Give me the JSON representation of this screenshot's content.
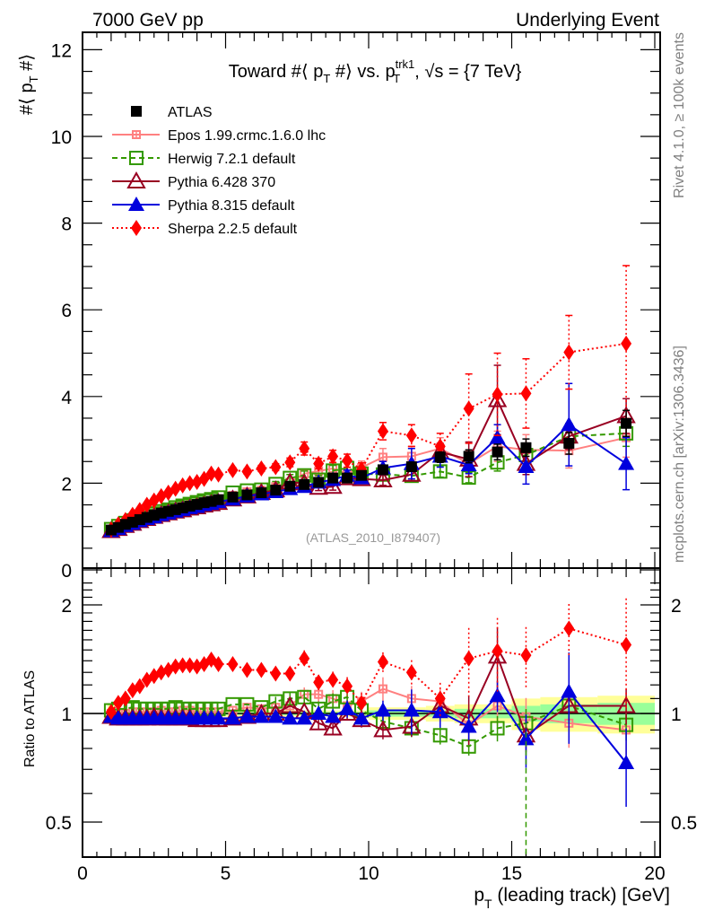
{
  "header": {
    "left": "7000 GeV pp",
    "right": "Underlying Event"
  },
  "side_labels": {
    "rivet": "Rivet 4.1.0, ≥ 100k events",
    "mcplots": "mcplots.cern.ch [arXiv:1306.3436]"
  },
  "analysis_tag": "(ATLAS_2010_I879407)",
  "chart_data": [
    {
      "type": "scatter",
      "panel": "main",
      "title": "Toward #⟨ p_T #⟩ vs. p_T^trk1, √s = {7 TeV}",
      "title_parts": {
        "main": "Toward #⟨ p",
        "sub1": "T",
        "mid": " #⟩ vs. p",
        "sup": "trk1",
        "sub2": "T",
        "tail": ", √s = {7 TeV}"
      },
      "ylabel": "#⟨ p_T #⟩",
      "ylabel_parts": {
        "pre": "#⟨ p",
        "sub": "T",
        "post": " #⟩"
      },
      "xlabel": "p_T (leading track) [GeV]",
      "xlabel_parts": {
        "pre": "p",
        "sub": "T",
        "post": " (leading track) [GeV]"
      },
      "xlim": [
        0,
        20.2
      ],
      "ylim": [
        0,
        12.4
      ],
      "yticks": [
        0,
        2,
        4,
        6,
        8,
        10,
        12
      ],
      "xticks": [
        0,
        5,
        10,
        15,
        20
      ],
      "legend_position": "top-left",
      "x": [
        1.0,
        1.25,
        1.5,
        1.75,
        2.0,
        2.25,
        2.5,
        2.75,
        3.0,
        3.25,
        3.5,
        3.75,
        4.0,
        4.25,
        4.5,
        4.75,
        5.25,
        5.75,
        6.25,
        6.75,
        7.25,
        7.75,
        8.25,
        8.75,
        9.25,
        9.75,
        10.5,
        11.5,
        12.5,
        13.5,
        14.5,
        15.5,
        17.0,
        19.0
      ],
      "series": [
        {
          "name": "ATLAS",
          "color": "#000000",
          "marker": "square-filled",
          "line": "none",
          "values": [
            0.92,
            0.98,
            1.05,
            1.1,
            1.16,
            1.21,
            1.26,
            1.31,
            1.35,
            1.39,
            1.43,
            1.47,
            1.51,
            1.55,
            1.58,
            1.62,
            1.68,
            1.73,
            1.78,
            1.84,
            1.93,
            1.97,
            2.02,
            2.12,
            2.12,
            2.18,
            2.31,
            2.38,
            2.6,
            2.62,
            2.72,
            2.82,
            2.92,
            3.38
          ],
          "errors": [
            0.01,
            0.01,
            0.01,
            0.01,
            0.01,
            0.01,
            0.01,
            0.01,
            0.01,
            0.01,
            0.01,
            0.01,
            0.02,
            0.02,
            0.02,
            0.02,
            0.02,
            0.03,
            0.03,
            0.03,
            0.04,
            0.04,
            0.05,
            0.05,
            0.06,
            0.07,
            0.08,
            0.1,
            0.12,
            0.15,
            0.18,
            0.2,
            0.25,
            0.3
          ]
        },
        {
          "name": "Epos 1.99.crmc.1.6.0 lhc",
          "color": "#ff8080",
          "marker": "open-cross-square",
          "line": "solid",
          "values": [
            0.92,
            0.98,
            1.05,
            1.11,
            1.17,
            1.22,
            1.27,
            1.33,
            1.37,
            1.41,
            1.46,
            1.5,
            1.53,
            1.57,
            1.6,
            1.64,
            1.72,
            1.8,
            1.84,
            1.92,
            2.02,
            2.22,
            2.28,
            2.34,
            2.22,
            2.36,
            2.6,
            2.62,
            2.8,
            2.45,
            2.85,
            2.77,
            2.75,
            3.05
          ],
          "errors": [
            0.02,
            0.02,
            0.02,
            0.02,
            0.02,
            0.02,
            0.02,
            0.02,
            0.02,
            0.02,
            0.03,
            0.03,
            0.03,
            0.03,
            0.03,
            0.03,
            0.04,
            0.05,
            0.05,
            0.06,
            0.08,
            0.1,
            0.11,
            0.13,
            0.14,
            0.15,
            0.2,
            0.22,
            0.25,
            0.3,
            0.35,
            0.35,
            0.4,
            0.45
          ]
        },
        {
          "name": "Herwig 7.2.1 default",
          "color": "#339900",
          "marker": "open-square",
          "line": "dashed",
          "values": [
            0.94,
            1.01,
            1.08,
            1.14,
            1.2,
            1.25,
            1.3,
            1.35,
            1.39,
            1.44,
            1.48,
            1.52,
            1.56,
            1.6,
            1.63,
            1.67,
            1.78,
            1.83,
            1.85,
            1.98,
            2.12,
            2.18,
            2.08,
            2.29,
            2.35,
            2.22,
            2.2,
            2.17,
            2.27,
            2.13,
            2.48,
            2.65,
            3.08,
            3.15
          ],
          "errors": [
            0.02,
            0.02,
            0.02,
            0.02,
            0.02,
            0.02,
            0.02,
            0.02,
            0.02,
            0.02,
            0.03,
            0.03,
            0.03,
            0.03,
            0.03,
            0.03,
            0.04,
            0.05,
            0.05,
            0.06,
            0.08,
            0.1,
            0.1,
            0.12,
            0.13,
            0.12,
            0.12,
            0.12,
            0.13,
            0.12,
            0.2,
            0.25,
            0.3,
            0.3
          ]
        },
        {
          "name": "Pythia 6.428 370",
          "color": "#990022",
          "marker": "open-triangle",
          "line": "solid",
          "values": [
            0.9,
            0.95,
            1.02,
            1.07,
            1.13,
            1.18,
            1.23,
            1.27,
            1.31,
            1.35,
            1.38,
            1.42,
            1.45,
            1.49,
            1.52,
            1.55,
            1.63,
            1.7,
            1.78,
            1.84,
            2.02,
            2.0,
            1.9,
            1.92,
            2.12,
            2.1,
            2.07,
            2.2,
            2.72,
            2.55,
            3.92,
            2.45,
            3.08,
            3.55
          ],
          "errors": [
            0.01,
            0.01,
            0.01,
            0.01,
            0.01,
            0.01,
            0.01,
            0.01,
            0.01,
            0.01,
            0.02,
            0.02,
            0.02,
            0.02,
            0.02,
            0.02,
            0.03,
            0.03,
            0.04,
            0.04,
            0.05,
            0.06,
            0.07,
            0.08,
            0.09,
            0.1,
            0.12,
            0.14,
            0.2,
            0.4,
            0.8,
            0.25,
            0.3,
            0.4
          ]
        },
        {
          "name": "Pythia 8.315 default",
          "color": "#0000dd",
          "marker": "filled-triangle",
          "line": "solid",
          "values": [
            0.9,
            0.95,
            1.02,
            1.07,
            1.13,
            1.18,
            1.22,
            1.27,
            1.31,
            1.35,
            1.39,
            1.43,
            1.46,
            1.5,
            1.53,
            1.57,
            1.63,
            1.7,
            1.75,
            1.8,
            1.87,
            1.92,
            2.02,
            2.08,
            2.18,
            2.12,
            2.35,
            2.45,
            2.62,
            2.42,
            3.05,
            2.38,
            3.35,
            2.45
          ],
          "errors": [
            0.01,
            0.01,
            0.01,
            0.01,
            0.01,
            0.01,
            0.01,
            0.01,
            0.01,
            0.01,
            0.02,
            0.02,
            0.02,
            0.02,
            0.02,
            0.02,
            0.03,
            0.03,
            0.04,
            0.04,
            0.05,
            0.06,
            0.07,
            0.08,
            0.12,
            0.1,
            0.15,
            0.35,
            0.25,
            0.2,
            0.3,
            0.4,
            0.95,
            0.6
          ]
        },
        {
          "name": "Sherpa 2.2.5 default",
          "color": "#ff0000",
          "marker": "filled-diamond",
          "line": "dotted",
          "values": [
            0.93,
            1.05,
            1.15,
            1.27,
            1.38,
            1.5,
            1.6,
            1.7,
            1.78,
            1.87,
            1.95,
            2.0,
            2.03,
            2.1,
            2.22,
            2.2,
            2.3,
            2.27,
            2.34,
            2.37,
            2.48,
            2.8,
            2.45,
            2.62,
            2.52,
            2.32,
            3.2,
            3.1,
            2.85,
            3.72,
            4.05,
            4.07,
            5.02,
            5.22
          ],
          "errors": [
            0.02,
            0.02,
            0.02,
            0.02,
            0.02,
            0.02,
            0.03,
            0.03,
            0.03,
            0.03,
            0.03,
            0.04,
            0.04,
            0.05,
            0.05,
            0.05,
            0.06,
            0.06,
            0.07,
            0.08,
            0.1,
            0.15,
            0.12,
            0.14,
            0.15,
            0.15,
            0.2,
            0.25,
            0.3,
            0.8,
            0.95,
            0.8,
            0.85,
            1.8
          ]
        }
      ]
    },
    {
      "type": "scatter",
      "panel": "ratio",
      "ylabel": "Ratio to ATLAS",
      "yscale": "log",
      "ylim": [
        0.42,
        2.35
      ],
      "yticks": [
        0.5,
        1,
        2
      ],
      "ytick_labels": [
        "0.5",
        "1",
        "2"
      ],
      "reference_line": 1,
      "bands": {
        "inner_color": "#99ff99",
        "outer_color": "#ffff99",
        "x_edges": [
          0.875,
          1.125,
          10.0,
          12.0,
          13.0,
          15.0,
          16.0,
          18.0,
          20.0
        ],
        "inner_half_width": [
          0.03,
          0.01,
          0.02,
          0.02,
          0.03,
          0.05,
          0.06,
          0.07
        ],
        "outer_half_width": [
          0.06,
          0.02,
          0.04,
          0.05,
          0.06,
          0.1,
          0.11,
          0.12
        ]
      },
      "series": [
        {
          "name": "Epos 1.99.crmc.1.6.0 lhc",
          "values": [
            1.0,
            1.0,
            1.0,
            1.01,
            1.01,
            1.01,
            1.01,
            1.02,
            1.01,
            1.01,
            1.02,
            1.02,
            1.01,
            1.01,
            1.01,
            1.01,
            1.02,
            1.04,
            1.03,
            1.04,
            1.05,
            1.13,
            1.13,
            1.1,
            1.05,
            1.08,
            1.17,
            1.1,
            1.08,
            0.93,
            1.05,
            0.98,
            0.94,
            0.9
          ]
        },
        {
          "name": "Herwig 7.2.1 default",
          "values": [
            1.02,
            1.03,
            1.03,
            1.04,
            1.03,
            1.03,
            1.03,
            1.03,
            1.03,
            1.04,
            1.03,
            1.03,
            1.03,
            1.03,
            1.03,
            1.03,
            1.06,
            1.06,
            1.04,
            1.08,
            1.1,
            1.11,
            1.03,
            1.08,
            1.11,
            1.02,
            0.95,
            0.91,
            0.87,
            0.81,
            0.91,
            0.94,
            1.05,
            0.93
          ]
        },
        {
          "name": "Pythia 6.428 370",
          "values": [
            0.98,
            0.97,
            0.97,
            0.97,
            0.97,
            0.97,
            0.98,
            0.97,
            0.97,
            0.97,
            0.97,
            0.97,
            0.96,
            0.96,
            0.96,
            0.96,
            0.97,
            0.98,
            1.0,
            1.0,
            1.05,
            1.01,
            0.94,
            0.91,
            1.0,
            0.96,
            0.9,
            0.92,
            1.05,
            0.97,
            1.44,
            0.87,
            1.05,
            1.05
          ]
        },
        {
          "name": "Pythia 8.315 default",
          "values": [
            0.98,
            0.97,
            0.97,
            0.97,
            0.97,
            0.97,
            0.97,
            0.97,
            0.97,
            0.97,
            0.97,
            0.97,
            0.97,
            0.97,
            0.97,
            0.97,
            0.97,
            0.98,
            0.98,
            0.98,
            0.97,
            0.97,
            1.0,
            0.98,
            1.03,
            0.97,
            1.02,
            1.02,
            1.01,
            0.92,
            1.12,
            0.85,
            1.15,
            0.73
          ]
        },
        {
          "name": "Sherpa 2.2.5 default",
          "values": [
            1.01,
            1.07,
            1.1,
            1.16,
            1.19,
            1.24,
            1.27,
            1.3,
            1.32,
            1.35,
            1.36,
            1.36,
            1.35,
            1.37,
            1.41,
            1.37,
            1.37,
            1.32,
            1.32,
            1.29,
            1.29,
            1.42,
            1.22,
            1.24,
            1.19,
            1.07,
            1.39,
            1.3,
            1.1,
            1.42,
            1.49,
            1.45,
            1.72,
            1.55
          ]
        }
      ]
    }
  ]
}
